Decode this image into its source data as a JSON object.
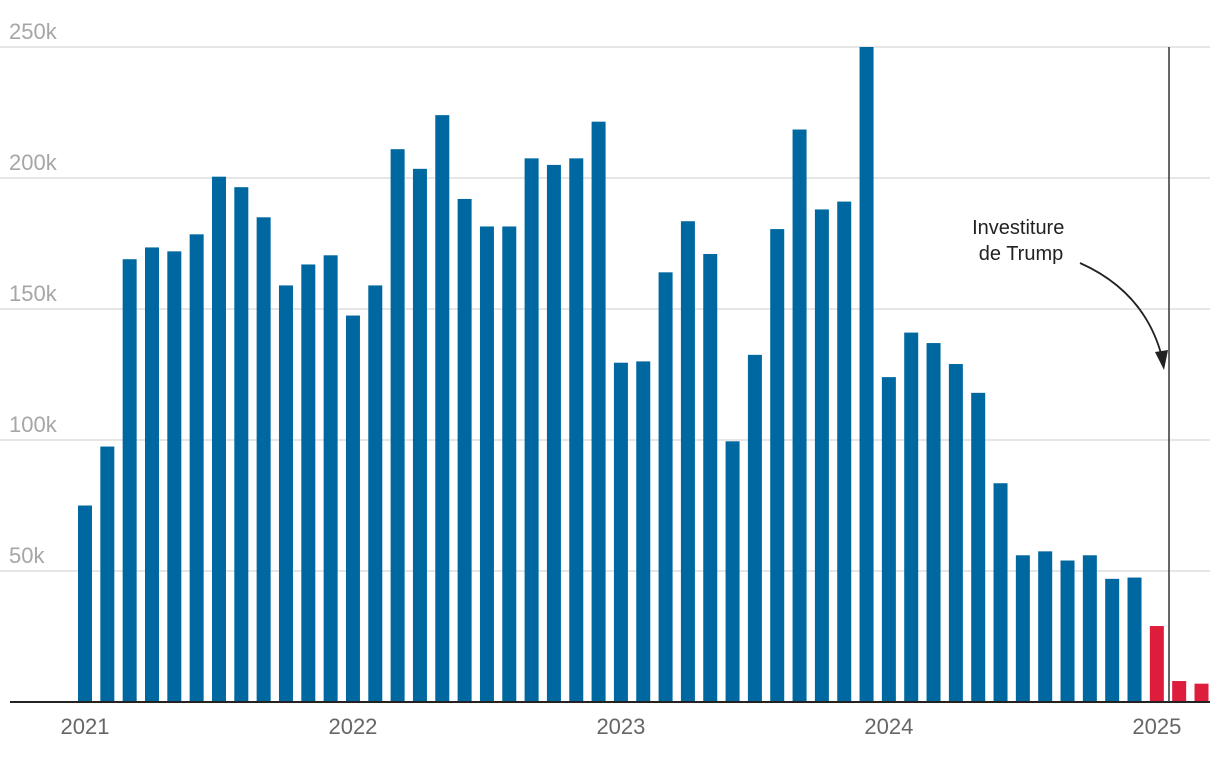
{
  "chart_data": {
    "type": "bar",
    "title": "",
    "xlabel": "",
    "ylabel": "",
    "ylim": [
      0,
      250000
    ],
    "y_ticks": [
      {
        "value": 50000,
        "label": "50k"
      },
      {
        "value": 100000,
        "label": "100k"
      },
      {
        "value": 150000,
        "label": "150k"
      },
      {
        "value": 200000,
        "label": "200k"
      },
      {
        "value": 250000,
        "label": "250k"
      }
    ],
    "x_ticks": [
      {
        "index": 0,
        "label": "2021"
      },
      {
        "index": 12,
        "label": "2022"
      },
      {
        "index": 24,
        "label": "2023"
      },
      {
        "index": 36,
        "label": "2024"
      },
      {
        "index": 48,
        "label": "2025"
      }
    ],
    "categories": [
      "2021-01",
      "2021-02",
      "2021-03",
      "2021-04",
      "2021-05",
      "2021-06",
      "2021-07",
      "2021-08",
      "2021-09",
      "2021-10",
      "2021-11",
      "2021-12",
      "2022-01",
      "2022-02",
      "2022-03",
      "2022-04",
      "2022-05",
      "2022-06",
      "2022-07",
      "2022-08",
      "2022-09",
      "2022-10",
      "2022-11",
      "2022-12",
      "2023-01",
      "2023-02",
      "2023-03",
      "2023-04",
      "2023-05",
      "2023-06",
      "2023-07",
      "2023-08",
      "2023-09",
      "2023-10",
      "2023-11",
      "2023-12",
      "2024-01",
      "2024-02",
      "2024-03",
      "2024-04",
      "2024-05",
      "2024-06",
      "2024-07",
      "2024-08",
      "2024-09",
      "2024-10",
      "2024-11",
      "2024-12",
      "2025-01",
      "2025-02",
      "2025-03"
    ],
    "values": [
      75000,
      97500,
      169000,
      173500,
      172000,
      178500,
      200500,
      196500,
      185000,
      159000,
      167000,
      170500,
      147500,
      159000,
      211000,
      203500,
      224000,
      192000,
      181500,
      181500,
      207500,
      205000,
      207500,
      221500,
      129500,
      130000,
      164000,
      183500,
      171000,
      99500,
      132500,
      180500,
      218500,
      188000,
      191000,
      250000,
      124000,
      141000,
      137000,
      129000,
      118000,
      83500,
      56000,
      57500,
      54000,
      56000,
      47000,
      47500,
      29000,
      8000,
      7000
    ],
    "highlight_from_index": 48,
    "colors": {
      "default_bar": "#0068a1",
      "highlight_bar": "#de1c3c",
      "gridline": "#dddddd",
      "axis": "#222222",
      "marker_line": "#333333"
    },
    "grid": true,
    "annotation": {
      "lines": [
        "Investiture",
        "de Trump"
      ],
      "at_value": 2025.0
    }
  }
}
